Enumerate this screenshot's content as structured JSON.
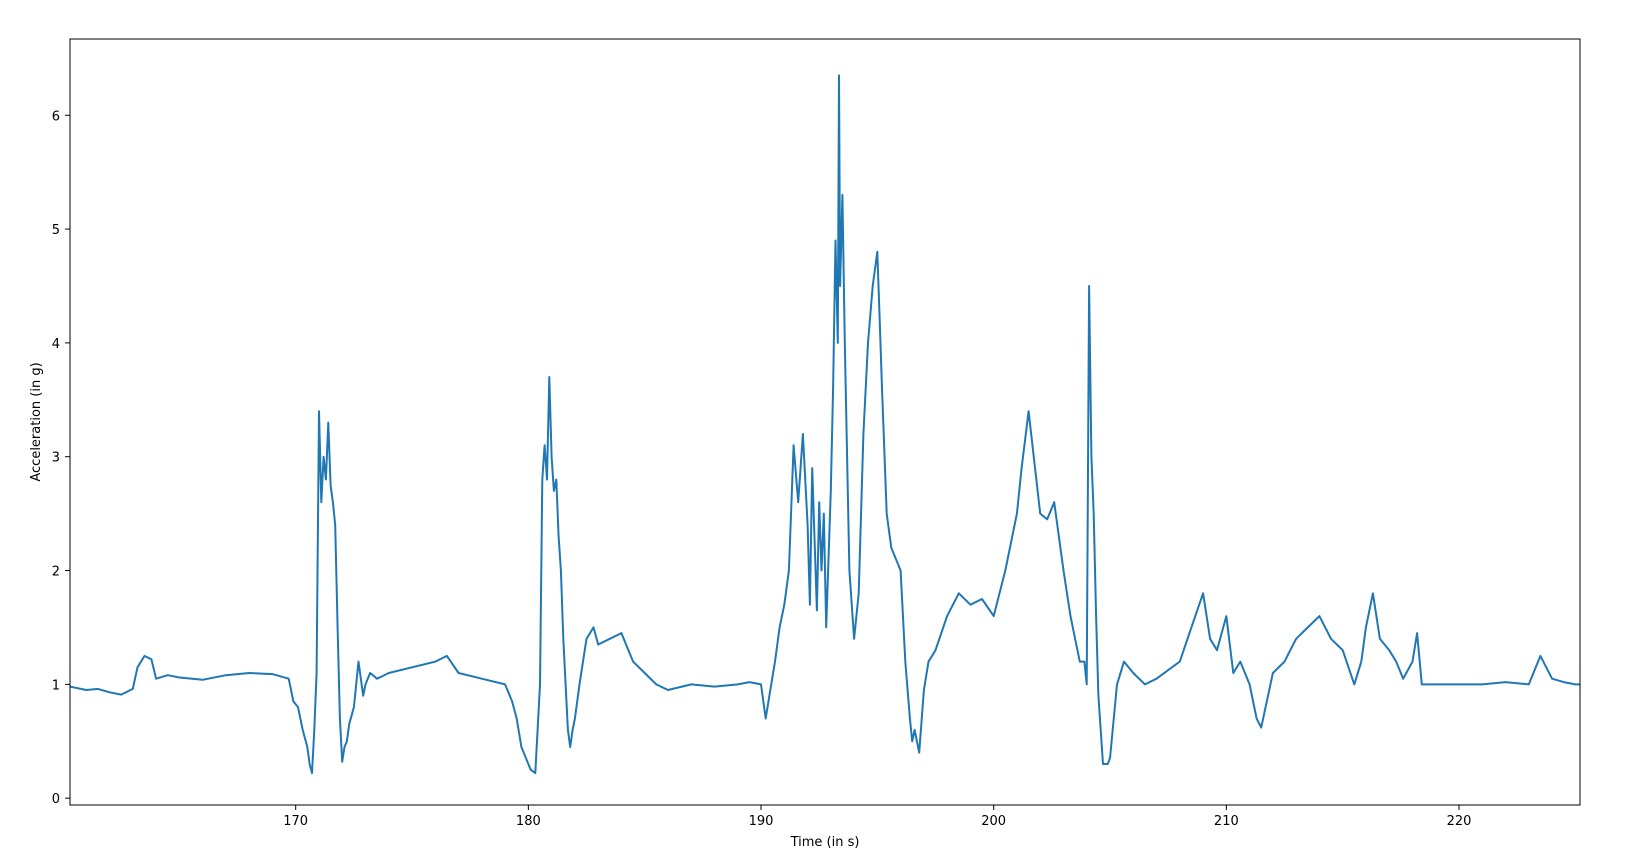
{
  "chart_data": {
    "type": "line",
    "title": "",
    "xlabel": "Time (in s)",
    "ylabel": "Acceleration (in g)",
    "xlim": [
      160.3,
      225.2
    ],
    "ylim": [
      -0.06,
      6.67
    ],
    "x_ticks": [
      170,
      180,
      190,
      200,
      210,
      220
    ],
    "y_ticks": [
      0,
      1,
      2,
      3,
      4,
      5,
      6
    ],
    "x_tick_labels": [
      "170",
      "180",
      "190",
      "200",
      "210",
      "220"
    ],
    "y_tick_labels": [
      "0",
      "1",
      "2",
      "3",
      "4",
      "5",
      "6"
    ],
    "grid": false,
    "legend": "none",
    "series": [
      {
        "color": "#1f77b4",
        "x": [
          160.3,
          161.0,
          161.5,
          162.0,
          162.5,
          163.0,
          163.2,
          163.5,
          163.8,
          164.0,
          164.5,
          165.0,
          166.0,
          167.0,
          168.0,
          169.0,
          169.7,
          169.9,
          170.1,
          170.3,
          170.5,
          170.6,
          170.7,
          170.8,
          170.9,
          171.0,
          171.1,
          171.2,
          171.3,
          171.4,
          171.5,
          171.6,
          171.7,
          171.8,
          171.9,
          172.0,
          172.1,
          172.2,
          172.3,
          172.5,
          172.7,
          172.9,
          173.0,
          173.2,
          173.5,
          174.0,
          175.0,
          176.0,
          176.5,
          177.0,
          178.0,
          179.0,
          179.3,
          179.5,
          179.7,
          179.9,
          180.1,
          180.3,
          180.5,
          180.6,
          180.7,
          180.8,
          180.9,
          181.0,
          181.1,
          181.2,
          181.3,
          181.4,
          181.5,
          181.6,
          181.7,
          181.8,
          181.9,
          182.0,
          182.2,
          182.5,
          182.8,
          183.0,
          183.5,
          184.0,
          184.5,
          185.0,
          185.5,
          186.0,
          187.0,
          188.0,
          189.0,
          189.5,
          190.0,
          190.2,
          190.4,
          190.6,
          190.8,
          191.0,
          191.2,
          191.4,
          191.6,
          191.8,
          192.0,
          192.1,
          192.2,
          192.4,
          192.5,
          192.6,
          192.7,
          192.8,
          193.0,
          193.1,
          193.2,
          193.3,
          193.35,
          193.4,
          193.5,
          193.6,
          193.7,
          193.8,
          194.0,
          194.2,
          194.4,
          194.6,
          194.8,
          195.0,
          195.1,
          195.2,
          195.4,
          195.6,
          195.8,
          196.0,
          196.2,
          196.4,
          196.5,
          196.6,
          196.8,
          197.0,
          197.2,
          197.5,
          198.0,
          198.5,
          199.0,
          199.5,
          200.0,
          200.5,
          201.0,
          201.2,
          201.5,
          202.0,
          202.3,
          202.6,
          203.0,
          203.3,
          203.5,
          203.7,
          203.9,
          204.0,
          204.1,
          204.2,
          204.3,
          204.4,
          204.5,
          204.6,
          204.7,
          204.9,
          205.0,
          205.3,
          205.6,
          206.0,
          206.5,
          207.0,
          208.0,
          208.5,
          209.0,
          209.3,
          209.6,
          210.0,
          210.3,
          210.6,
          211.0,
          211.3,
          211.5,
          212.0,
          212.5,
          213.0,
          213.5,
          214.0,
          214.5,
          215.0,
          215.5,
          215.8,
          216.0,
          216.3,
          216.6,
          217.0,
          217.3,
          217.6,
          218.0,
          218.2,
          218.4,
          218.6,
          219.0,
          220.0,
          221.0,
          222.0,
          223.0,
          223.5,
          224.0,
          224.5,
          225.0,
          225.2
        ],
        "y": [
          0.98,
          0.95,
          0.96,
          0.93,
          0.91,
          0.96,
          1.15,
          1.25,
          1.22,
          1.05,
          1.08,
          1.06,
          1.04,
          1.08,
          1.1,
          1.09,
          1.05,
          0.85,
          0.8,
          0.6,
          0.45,
          0.3,
          0.22,
          0.6,
          1.1,
          3.4,
          2.6,
          3.0,
          2.8,
          3.3,
          2.75,
          2.6,
          2.4,
          1.5,
          0.7,
          0.32,
          0.45,
          0.5,
          0.65,
          0.8,
          1.2,
          0.9,
          1.0,
          1.1,
          1.05,
          1.1,
          1.15,
          1.2,
          1.25,
          1.1,
          1.05,
          1.0,
          0.85,
          0.7,
          0.45,
          0.35,
          0.25,
          0.22,
          1.0,
          2.8,
          3.1,
          2.8,
          3.7,
          3.0,
          2.7,
          2.8,
          2.3,
          2.0,
          1.4,
          1.0,
          0.6,
          0.45,
          0.6,
          0.7,
          1.0,
          1.4,
          1.5,
          1.35,
          1.4,
          1.45,
          1.2,
          1.1,
          1.0,
          0.95,
          1.0,
          0.98,
          1.0,
          1.02,
          1.0,
          0.7,
          0.95,
          1.2,
          1.5,
          1.7,
          2.0,
          3.1,
          2.6,
          3.2,
          2.4,
          1.7,
          2.9,
          1.65,
          2.6,
          2.0,
          2.5,
          1.5,
          2.7,
          3.6,
          4.9,
          4.0,
          6.35,
          4.5,
          5.3,
          4.0,
          3.0,
          2.0,
          1.4,
          1.8,
          3.2,
          4.0,
          4.5,
          4.8,
          4.2,
          3.6,
          2.5,
          2.2,
          2.1,
          2.0,
          1.2,
          0.7,
          0.5,
          0.6,
          0.4,
          0.95,
          1.2,
          1.3,
          1.6,
          1.8,
          1.7,
          1.75,
          1.6,
          2.0,
          2.5,
          2.9,
          3.4,
          2.5,
          2.45,
          2.6,
          2.0,
          1.6,
          1.4,
          1.2,
          1.2,
          1.0,
          4.5,
          3.0,
          2.5,
          1.6,
          0.9,
          0.6,
          0.3,
          0.3,
          0.35,
          1.0,
          1.2,
          1.1,
          1.0,
          1.05,
          1.2,
          1.5,
          1.8,
          1.4,
          1.3,
          1.6,
          1.1,
          1.2,
          1.0,
          0.7,
          0.62,
          1.1,
          1.2,
          1.4,
          1.5,
          1.6,
          1.4,
          1.3,
          1.0,
          1.2,
          1.5,
          1.8,
          1.4,
          1.3,
          1.2,
          1.05,
          1.2,
          1.45,
          1.0,
          1.0,
          1.0,
          1.0,
          1.0,
          1.02,
          1.0,
          1.25,
          1.05,
          1.02,
          1.0,
          1.0
        ]
      }
    ]
  }
}
